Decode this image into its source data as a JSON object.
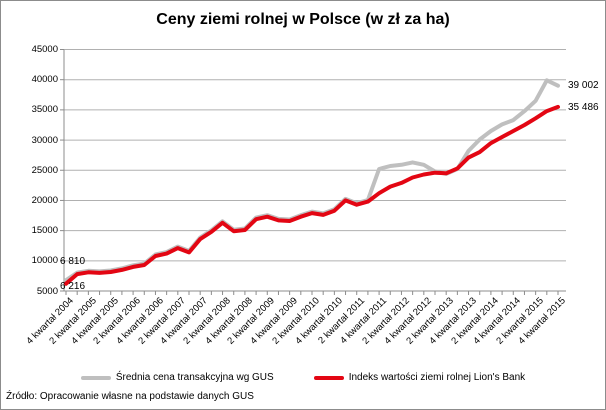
{
  "title": "Ceny ziemi rolnej w Polsce (w zł za ha)",
  "source": "Źródło: Opracowanie własne na podstawie danych GUS",
  "colors": {
    "gus_gray": "#bfbfbf",
    "lions_red": "#e30613",
    "gridline": "#b0b0b0",
    "axis": "#8c8c8c",
    "text": "#000000"
  },
  "legend": [
    {
      "label": "Średnia cena transakcyjna wg GUS",
      "color": "#bfbfbf"
    },
    {
      "label": "Indeks wartości ziemi rolnej Lion's Bank",
      "color": "#e30613"
    }
  ],
  "point_labels": {
    "gus_start": "6 810",
    "lions_start": "6 216",
    "gus_end": "39 002",
    "lions_end": "35 486"
  },
  "chart_data": {
    "type": "line",
    "title": "Ceny ziemi rolnej w Polsce (w zł za ha)",
    "ylim": [
      5000,
      45000
    ],
    "y_ticks": [
      45000,
      40000,
      35000,
      30000,
      25000,
      20000,
      15000,
      10000,
      5000
    ],
    "grid": "horizontal",
    "legend_position": "bottom",
    "x_tick_labels": [
      "4 kwartał 2004",
      "2 kwartał 2005",
      "4 kwartał 2005",
      "2 kwartał 2006",
      "4 kwartał 2006",
      "2 kwartał 2007",
      "4 kwartał 2007",
      "2 kwartał 2008",
      "4 kwartał 2008",
      "2 kwartał 2009",
      "4 kwartał 2009",
      "2 kwartał 2010",
      "4 kwartał 2010",
      "2 kwartał 2011",
      "4 kwartał 2011",
      "2 kwartał 2012",
      "4 kwartał 2012",
      "2 kwartał 2013",
      "4 kwartał 2013",
      "2 kwartał 2014",
      "4 kwartał 2014",
      "2 kwartał 2015",
      "4 kwartał 2015"
    ],
    "label_every_n_points": 2,
    "series": [
      {
        "name": "Średnia cena transakcyjna wg GUS",
        "color": "#bfbfbf",
        "first_value": 6810,
        "last_value": 39002,
        "values": [
          6810,
          8050,
          8350,
          8250,
          8400,
          8750,
          9250,
          9550,
          11050,
          11450,
          12350,
          11650,
          13850,
          15050,
          16550,
          15150,
          15350,
          17150,
          17550,
          16950,
          16850,
          17550,
          18150,
          17850,
          18550,
          20250,
          19550,
          20050,
          25200,
          25700,
          25900,
          26300,
          25900,
          24800,
          24400,
          25200,
          28200,
          30100,
          31500,
          32600,
          33300,
          34800,
          36500,
          39900,
          39002
        ]
      },
      {
        "name": "Indeks wartości ziemi rolnej Lion's Bank",
        "color": "#e30613",
        "first_value": 6216,
        "last_value": 35486,
        "values": [
          6216,
          7800,
          8100,
          8000,
          8150,
          8500,
          9000,
          9300,
          10800,
          11200,
          12100,
          11400,
          13600,
          14800,
          16300,
          14900,
          15100,
          16900,
          17300,
          16700,
          16600,
          17300,
          17900,
          17600,
          18300,
          20000,
          19300,
          19800,
          21200,
          22300,
          22900,
          23800,
          24300,
          24600,
          24500,
          25300,
          27100,
          28000,
          29500,
          30500,
          31500,
          32500,
          33600,
          34800,
          35486
        ]
      }
    ]
  }
}
